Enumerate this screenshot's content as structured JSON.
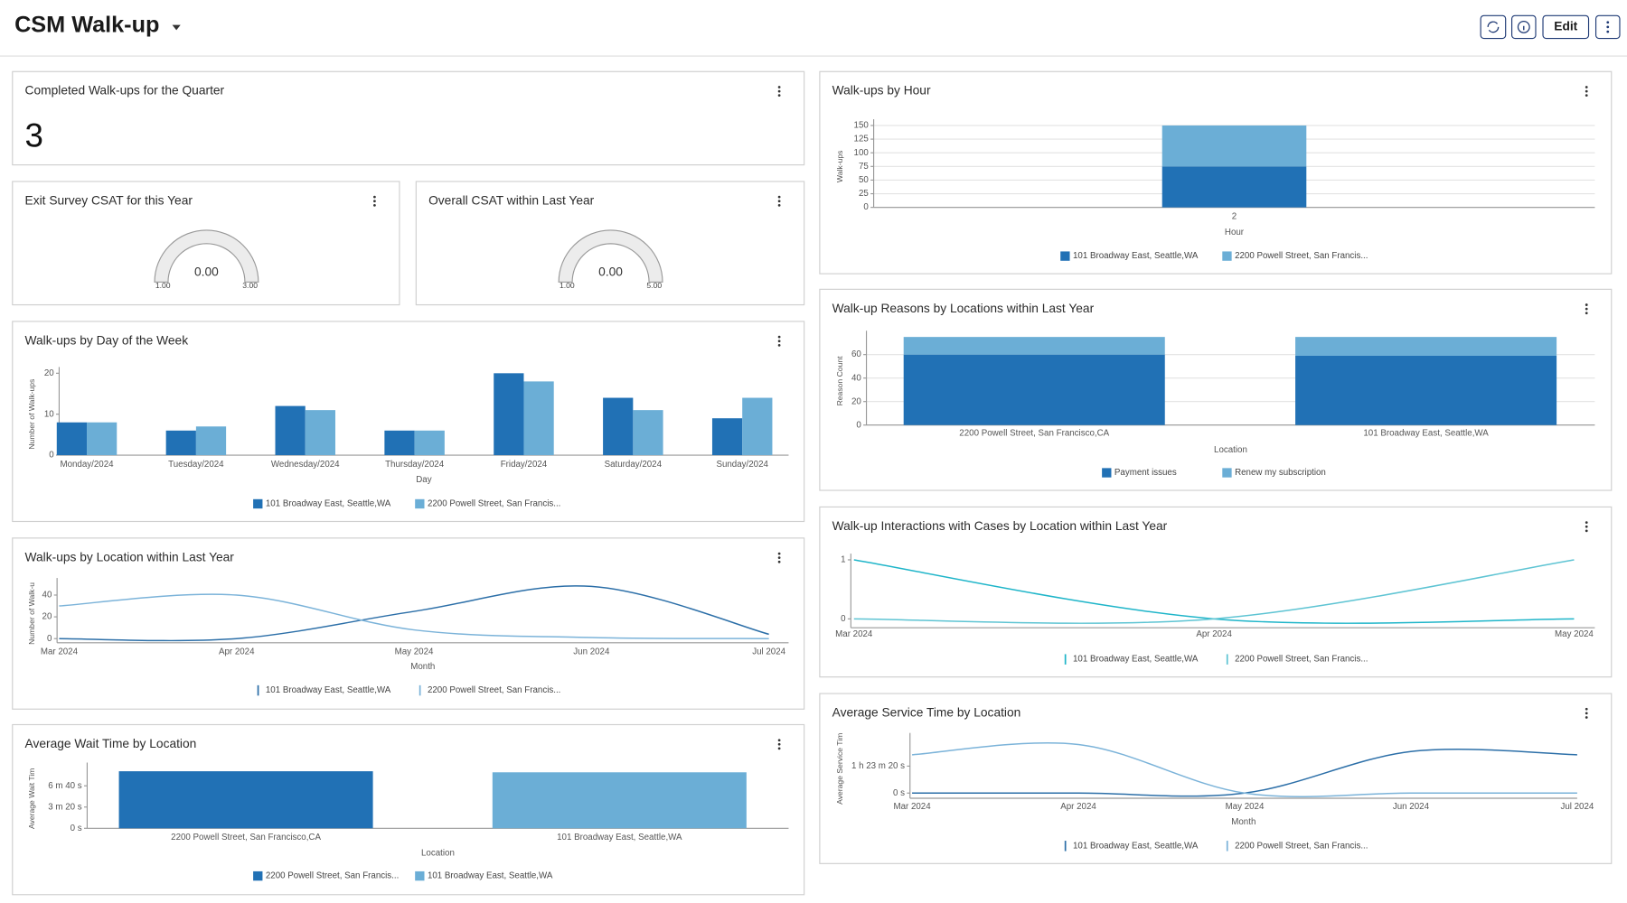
{
  "header": {
    "title": "CSM Walk-up",
    "edit_button": "Edit"
  },
  "widgets": [
    {
      "title": "Completed Walk-ups for the Quarter",
      "metric": 3
    },
    {
      "title": "Exit Survey CSAT for this Year",
      "gauge": {
        "value": 0,
        "value_label": "0.00",
        "min": {
          "value": 1,
          "label": "1.00"
        },
        "max": {
          "value": 3,
          "label": "3.00"
        },
        "color": "#2171b5"
      }
    },
    {
      "title": "Overall CSAT within Last Year",
      "gauge": {
        "value": 0,
        "value_label": "0.00",
        "min": {
          "value": 1,
          "label": "1.00"
        },
        "max": {
          "value": 5,
          "label": "5.00"
        },
        "color": "#2171b5"
      }
    },
    {
      "title": "Walk-ups by Day of the Week",
      "chart": {
        "type": "bar",
        "categories": [
          "Monday/2024",
          "Tuesday/2024",
          "Wednesday/2024",
          "Thursday/2024",
          "Friday/2024",
          "Saturday/2024",
          "Sunday/2024"
        ],
        "series": [
          {
            "name": "101 Broadway East, Seattle,WA",
            "color": "#2171b5",
            "values": [
              8,
              6,
              12,
              6,
              20,
              14,
              9
            ]
          },
          {
            "name": "2200 Powell Street, San Francis...",
            "color": "#6baed6",
            "values": [
              8,
              7,
              11,
              6,
              18,
              11,
              14
            ]
          }
        ],
        "ylim": [
          0,
          20
        ],
        "yticks": [
          0,
          10,
          20
        ],
        "xlabel": "Day",
        "ylabel": "Number of Walk-ups"
      }
    },
    {
      "title": "Walk-ups by Location within Last Year",
      "chart": {
        "type": "line",
        "categories": [
          "Mar 2024",
          "Apr 2024",
          "May 2024",
          "Jun 2024",
          "Jul 2024"
        ],
        "series": [
          {
            "name": "101 Broadway East, Seattle,WA",
            "color": "#2c6fa8",
            "values": [
              0,
              0,
              25,
              48,
              4
            ]
          },
          {
            "name": "2200 Powell Street, San Francis...",
            "color": "#7bb3d9",
            "values": [
              30,
              40,
              8,
              1,
              0
            ]
          }
        ],
        "ylim": [
          0,
          50
        ],
        "yticks": [
          0,
          20,
          40
        ],
        "xlabel": "Month",
        "ylabel": "Number of Walk-u"
      }
    },
    {
      "title": "Average Wait Time by Location",
      "chart": {
        "type": "bar",
        "categories": [
          "2200 Powell Street, San Francisco,CA",
          "101 Broadway East, Seattle,WA"
        ],
        "series": [
          {
            "name": "2200 Powell Street, San Francis...",
            "color": "#2171b5",
            "values": [
              537,
              null
            ]
          },
          {
            "name": "101 Broadway East, Seattle,WA",
            "color": "#6baed6",
            "values": [
              null,
              527
            ]
          }
        ],
        "ylim": [
          0,
          560
        ],
        "yticks": [
          {
            "value": 0,
            "label": "0 s"
          },
          {
            "value": 200,
            "label": "3 m 20 s"
          },
          {
            "value": 400,
            "label": "6 m 40 s"
          }
        ],
        "xlabel": "Location",
        "ylabel": "Average Wait Tim"
      }
    },
    {
      "title": "Walk-ups by Hour",
      "chart": {
        "type": "bar",
        "stacked": true,
        "grid": true,
        "categories": [
          "2"
        ],
        "series": [
          {
            "name": "101 Broadway East, Seattle,WA",
            "color": "#2171b5",
            "values": [
              75
            ]
          },
          {
            "name": "2200 Powell Street, San Francis...",
            "color": "#6baed6",
            "values": [
              75
            ]
          }
        ],
        "ylim": [
          0,
          150
        ],
        "yticks": [
          0,
          25,
          50,
          75,
          100,
          125,
          150
        ],
        "xlabel": "Hour",
        "ylabel": "Walk-ups"
      }
    },
    {
      "title": "Walk-up Reasons by Locations within Last Year",
      "chart": {
        "type": "bar",
        "stacked": true,
        "grid": true,
        "categories": [
          "2200 Powell Street, San Francisco,CA",
          "101 Broadway East, Seattle,WA"
        ],
        "series": [
          {
            "name": "Payment issues",
            "color": "#2171b5",
            "values": [
              60,
              59
            ]
          },
          {
            "name": "Renew my subscription",
            "color": "#6baed6",
            "values": [
              15,
              16
            ]
          }
        ],
        "ylim": [
          0,
          75
        ],
        "yticks": [
          0,
          20,
          40,
          60
        ],
        "xlabel": "Location",
        "ylabel": "Reason Count"
      }
    },
    {
      "title": "Walk-up Interactions with Cases by Location within Last Year",
      "chart": {
        "type": "line",
        "categories": [
          "Mar 2024",
          "Apr 2024",
          "May 2024"
        ],
        "series": [
          {
            "name": "101 Broadway East, Seattle,WA",
            "color": "#1fb5c9",
            "values": [
              1,
              0,
              0
            ]
          },
          {
            "name": "2200 Powell Street, San Francis...",
            "color": "#5ec4d3",
            "values": [
              0,
              0,
              1
            ]
          }
        ],
        "ylim": [
          -0.15,
          1
        ],
        "yticks": [
          0,
          1
        ]
      }
    },
    {
      "title": "Average Service Time by Location",
      "chart": {
        "type": "line",
        "categories": [
          "Mar 2024",
          "Apr 2024",
          "May 2024",
          "Jun 2024",
          "Jul 2024"
        ],
        "series": [
          {
            "name": "101 Broadway East, Seattle,WA",
            "color": "#2c6fa8",
            "values": [
              0,
              0,
              0,
              7700,
              7100
            ]
          },
          {
            "name": "2200 Powell Street, San Francis...",
            "color": "#7bb3d9",
            "values": [
              7100,
              9000,
              0,
              0,
              0
            ]
          }
        ],
        "ylim": [
          0,
          10000
        ],
        "yticks": [
          {
            "value": 0,
            "label": "0 s"
          },
          {
            "value": 5000,
            "label": "1 h 23 m 20 s"
          }
        ],
        "xlabel": "Month",
        "ylabel": "Average Service Tim"
      }
    }
  ]
}
